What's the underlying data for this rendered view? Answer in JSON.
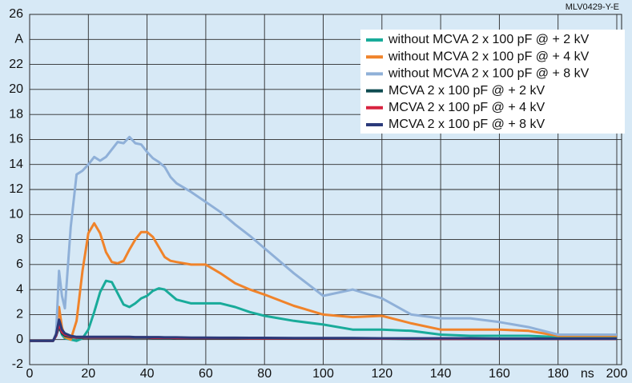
{
  "chart_data": {
    "type": "line",
    "annotation": "MLV0429-Y-E",
    "x_label": "ns",
    "x": [
      0,
      5,
      8,
      9,
      10,
      11,
      12,
      14,
      16,
      18,
      20,
      22,
      24,
      26,
      28,
      30,
      32,
      34,
      36,
      38,
      40,
      42,
      44,
      46,
      48,
      50,
      55,
      60,
      65,
      70,
      75,
      80,
      90,
      100,
      110,
      120,
      130,
      140,
      150,
      160,
      170,
      180,
      190,
      200
    ],
    "series": [
      {
        "name": "without MCVA 2 x 100 pF @ + 2 kV",
        "color": "#19ab9a",
        "values": [
          -0.1,
          -0.1,
          -0.1,
          0.3,
          1.2,
          0.4,
          0.1,
          0,
          -0.1,
          0.1,
          0.8,
          2.2,
          3.8,
          4.7,
          4.6,
          3.7,
          2.8,
          2.6,
          2.9,
          3.3,
          3.5,
          3.9,
          4.1,
          4.0,
          3.6,
          3.2,
          2.9,
          2.9,
          2.9,
          2.6,
          2.2,
          1.9,
          1.5,
          1.2,
          0.8,
          0.8,
          0.7,
          0.4,
          0.3,
          0.3,
          0.3,
          0.2,
          0.2,
          0.2
        ]
      },
      {
        "name": "without MCVA 2 x 100 pF @ + 4 kV",
        "color": "#f0832a",
        "values": [
          -0.1,
          -0.1,
          -0.1,
          0.5,
          2.6,
          1,
          0.2,
          0,
          1.5,
          5.5,
          8.5,
          9.3,
          8.5,
          7,
          6.2,
          6.1,
          6.3,
          7.2,
          8.0,
          8.6,
          8.6,
          8.2,
          7.4,
          6.6,
          6.3,
          6.2,
          6.0,
          6.0,
          5.3,
          4.5,
          4.0,
          3.6,
          2.7,
          2.0,
          1.8,
          1.9,
          1.3,
          0.8,
          0.8,
          0.8,
          0.7,
          0.3,
          0.3,
          0.3
        ]
      },
      {
        "name": "without MCVA 2 x 100 pF @ + 8 kV",
        "color": "#8fb0d8",
        "values": [
          -0.1,
          -0.1,
          -0.1,
          0.5,
          5.5,
          3.5,
          2.5,
          9,
          13.2,
          13.5,
          14,
          14.6,
          14.3,
          14.6,
          15.2,
          15.8,
          15.7,
          16.2,
          15.7,
          15.6,
          15.0,
          14.5,
          14.2,
          13.8,
          13.0,
          12.5,
          11.8,
          11.0,
          10.2,
          9.2,
          8.3,
          7.3,
          5.3,
          3.5,
          4.0,
          3.3,
          2.0,
          1.7,
          1.7,
          1.4,
          1.0,
          0.4,
          0.4,
          0.4
        ]
      },
      {
        "name": "MCVA 2 x 100 pF @ + 2 kV",
        "color": "#0e4b50",
        "values": [
          -0.1,
          -0.1,
          -0.1,
          0.3,
          1.0,
          0.5,
          0.3,
          0.2,
          0.15,
          0.15,
          0.15,
          0.15,
          0.15,
          0.15,
          0.15,
          0.15,
          0.15,
          0.15,
          0.15,
          0.15,
          0.15,
          0.12,
          0.12,
          0.12,
          0.12,
          0.1,
          0.1,
          0.1,
          0.1,
          0.1,
          0.1,
          0.1,
          0.1,
          0.1,
          0.08,
          0.08,
          0.05,
          0.05,
          0.05,
          0.05,
          0.05,
          0.05,
          0.05,
          0.05
        ]
      },
      {
        "name": "MCVA 2 x 100 pF @ + 4 kV",
        "color": "#d8223f",
        "values": [
          -0.1,
          -0.1,
          -0.1,
          0.3,
          1.3,
          0.6,
          0.4,
          0.25,
          0.18,
          0.18,
          0.18,
          0.18,
          0.18,
          0.18,
          0.18,
          0.18,
          0.18,
          0.18,
          0.18,
          0.18,
          0.18,
          0.15,
          0.15,
          0.15,
          0.15,
          0.12,
          0.12,
          0.12,
          0.12,
          0.12,
          0.1,
          0.1,
          0.1,
          0.1,
          0.1,
          0.08,
          0.08,
          0.06,
          0.06,
          0.06,
          0.06,
          0.06,
          0.06,
          0.06
        ]
      },
      {
        "name": "MCVA 2 x 100 pF @ + 8 kV",
        "color": "#2b3a7a",
        "values": [
          -0.1,
          -0.1,
          -0.1,
          0.4,
          1.6,
          0.8,
          0.5,
          0.3,
          0.22,
          0.22,
          0.22,
          0.22,
          0.22,
          0.22,
          0.22,
          0.22,
          0.22,
          0.22,
          0.2,
          0.2,
          0.2,
          0.2,
          0.2,
          0.18,
          0.18,
          0.18,
          0.16,
          0.16,
          0.15,
          0.15,
          0.14,
          0.14,
          0.13,
          0.12,
          0.12,
          0.1,
          0.1,
          0.1,
          0.1,
          0.08,
          0.08,
          0.08,
          0.08,
          0.08
        ]
      }
    ],
    "xlim": [
      0,
      200
    ],
    "xticks": [
      0,
      20,
      40,
      60,
      80,
      100,
      120,
      140,
      160,
      180,
      200
    ],
    "ylim": [
      -2,
      26
    ],
    "yticks": [
      -2,
      0,
      2,
      4,
      6,
      8,
      10,
      12,
      14,
      16,
      18,
      20,
      22,
      {
        "value": 24,
        "label": "A"
      },
      26
    ],
    "grid": true
  }
}
